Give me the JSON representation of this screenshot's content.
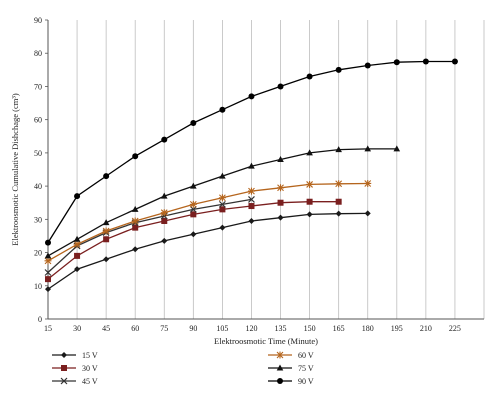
{
  "chart_data": {
    "type": "line",
    "xlabel": "Elektroosmotic Time (Minute)",
    "ylabel": "Elektroosmotic Cumulative Dishchage (cm³)",
    "xlim": [
      15,
      240
    ],
    "ylim": [
      0,
      90
    ],
    "x_ticks": [
      15,
      30,
      45,
      60,
      75,
      90,
      105,
      120,
      135,
      150,
      165,
      180,
      195,
      210,
      225
    ],
    "y_ticks": [
      0,
      10,
      20,
      30,
      40,
      50,
      60,
      70,
      80,
      90
    ],
    "grid": "vertical",
    "legend_position": "bottom",
    "series": [
      {
        "name": "15 V",
        "color": "#1a1a1a",
        "marker": "diamond",
        "x": [
          15,
          30,
          45,
          60,
          75,
          90,
          105,
          120,
          135,
          150,
          165,
          180
        ],
        "y": [
          9,
          15,
          18,
          21,
          23.5,
          25.5,
          27.5,
          29.5,
          30.5,
          31.5,
          31.7,
          31.8
        ]
      },
      {
        "name": "30 V",
        "color": "#7a1f1f",
        "marker": "square",
        "x": [
          15,
          30,
          45,
          60,
          75,
          90,
          105,
          120,
          135,
          150,
          165
        ],
        "y": [
          12,
          19,
          24,
          27.5,
          29.5,
          31.5,
          33,
          34,
          35,
          35.3,
          35.3
        ]
      },
      {
        "name": "45 V",
        "color": "#333333",
        "marker": "x",
        "x": [
          15,
          30,
          45,
          60,
          75,
          90,
          105,
          120
        ],
        "y": [
          14,
          22,
          26,
          29,
          31,
          33,
          34.5,
          36
        ]
      },
      {
        "name": "60 V",
        "color": "#b5651d",
        "marker": "star",
        "x": [
          15,
          30,
          45,
          60,
          75,
          90,
          105,
          120,
          135,
          150,
          165,
          180
        ],
        "y": [
          17.5,
          22.5,
          26.5,
          29.5,
          32,
          34.5,
          36.5,
          38.5,
          39.5,
          40.5,
          40.7,
          40.8
        ]
      },
      {
        "name": "75 V",
        "color": "#111111",
        "marker": "triangle",
        "x": [
          15,
          30,
          45,
          60,
          75,
          90,
          105,
          120,
          135,
          150,
          165,
          180,
          195
        ],
        "y": [
          19,
          24,
          29,
          33,
          37,
          40,
          43,
          46,
          48,
          50,
          51,
          51.2,
          51.2
        ]
      },
      {
        "name": "90 V",
        "color": "#000000",
        "marker": "circle",
        "x": [
          15,
          30,
          45,
          60,
          75,
          90,
          105,
          120,
          135,
          150,
          165,
          180,
          195,
          210,
          225
        ],
        "y": [
          23,
          37,
          43,
          49,
          54,
          59,
          63,
          67,
          70,
          73,
          75,
          76.3,
          77.3,
          77.5,
          77.5
        ]
      }
    ]
  }
}
